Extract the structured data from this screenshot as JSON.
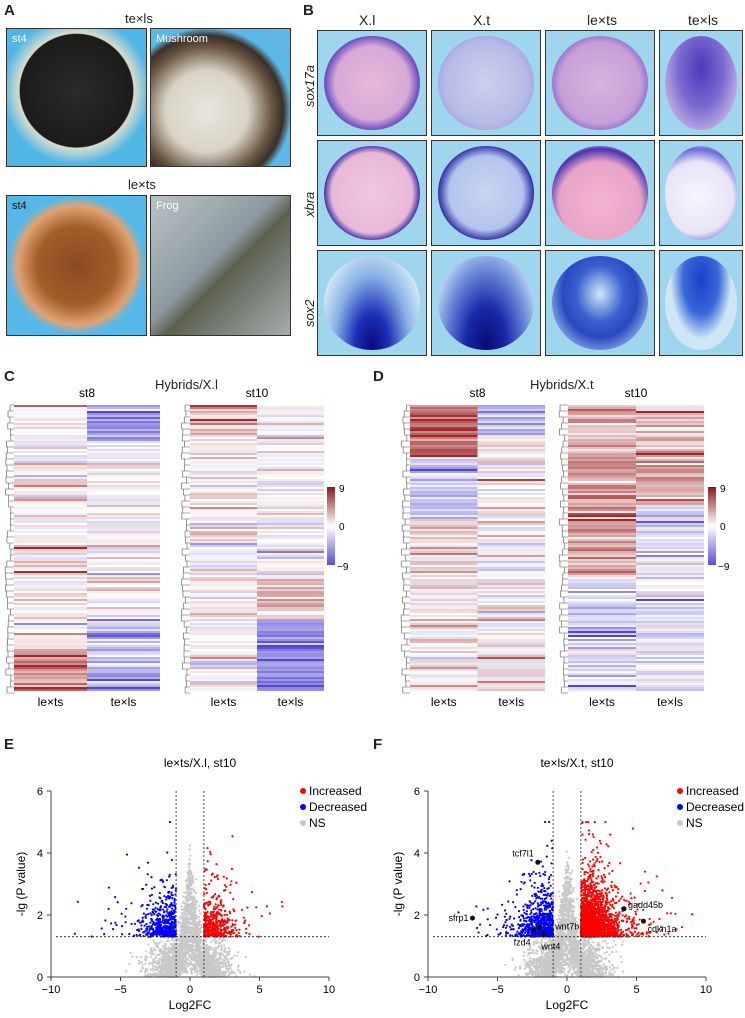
{
  "panel_a": {
    "letter": "A",
    "title_top": "te×ls",
    "title_bottom": "le×ts",
    "photos": [
      "st4",
      "Mushroom",
      "st4",
      "Frog"
    ]
  },
  "panel_b": {
    "letter": "B",
    "columns": [
      "X.l",
      "X.t",
      "le×ts",
      "te×ls"
    ],
    "rows": [
      "sox17a",
      "xbra",
      "sox2"
    ]
  },
  "panel_c": {
    "letter": "C",
    "title": "Hybrids/X.l",
    "stages": [
      "st8",
      "st10"
    ],
    "columns": [
      "le×ts",
      "te×ls"
    ],
    "colorbar": {
      "max": "9",
      "mid": "0",
      "min": "−9",
      "high_color": "#8b1a1a",
      "low_color": "#5a4fd0"
    }
  },
  "panel_d": {
    "letter": "D",
    "title": "Hybrids/X.t",
    "stages": [
      "st8",
      "st10"
    ],
    "columns": [
      "le×ts",
      "te×ls"
    ],
    "colorbar": {
      "max": "9",
      "mid": "0",
      "min": "−9"
    }
  },
  "chart_data": [
    {
      "panel": "E",
      "type": "scatter",
      "title": "le×ts/X.l, st10",
      "xlabel": "Log2FC",
      "ylabel": "-lg (P value)",
      "xlim": [
        -10,
        10
      ],
      "ylim": [
        0,
        6
      ],
      "xticks": [
        "−10",
        "−5",
        "0",
        "5",
        "10"
      ],
      "yticks": [
        "0",
        "2",
        "4",
        "6"
      ],
      "thresholds": {
        "log2fc": [
          -1,
          1
        ],
        "neg_log_p": 1.3
      },
      "legend": [
        {
          "name": "Increased",
          "color": "#ff0000"
        },
        {
          "name": "Decreased",
          "color": "#0000ff"
        },
        {
          "name": "NS",
          "color": "#c8c8c8"
        }
      ],
      "legend_position": "top-right",
      "labeled_genes": []
    },
    {
      "panel": "F",
      "type": "scatter",
      "title": "te×ls/X.t, st10",
      "xlabel": "Log2FC",
      "ylabel": "-lg (P value)",
      "xlim": [
        -10,
        10
      ],
      "ylim": [
        0,
        6
      ],
      "xticks": [
        "−10",
        "−5",
        "0",
        "5",
        "10"
      ],
      "yticks": [
        "0",
        "2",
        "4",
        "6"
      ],
      "thresholds": {
        "log2fc": [
          -1,
          1
        ],
        "neg_log_p": 1.3
      },
      "legend": [
        {
          "name": "Increased",
          "color": "#ff0000"
        },
        {
          "name": "Decreased",
          "color": "#0000ff"
        },
        {
          "name": "NS",
          "color": "#c8c8c8"
        }
      ],
      "legend_position": "top-right",
      "labeled_genes": [
        {
          "name": "tcf7l1",
          "x": -2.1,
          "y": 3.7
        },
        {
          "name": "sfrp1",
          "x": -6.8,
          "y": 1.9
        },
        {
          "name": "wnt7b",
          "x": -2.0,
          "y": 1.6
        },
        {
          "name": "fzd4",
          "x": -2.4,
          "y": 1.5
        },
        {
          "name": "wnt4",
          "x": -1.7,
          "y": 1.4
        },
        {
          "name": "gadd45b",
          "x": 4.1,
          "y": 2.2
        },
        {
          "name": "cdkn1a",
          "x": 5.5,
          "y": 1.8
        }
      ]
    }
  ],
  "panel_e": {
    "letter": "E"
  },
  "panel_f": {
    "letter": "F"
  }
}
